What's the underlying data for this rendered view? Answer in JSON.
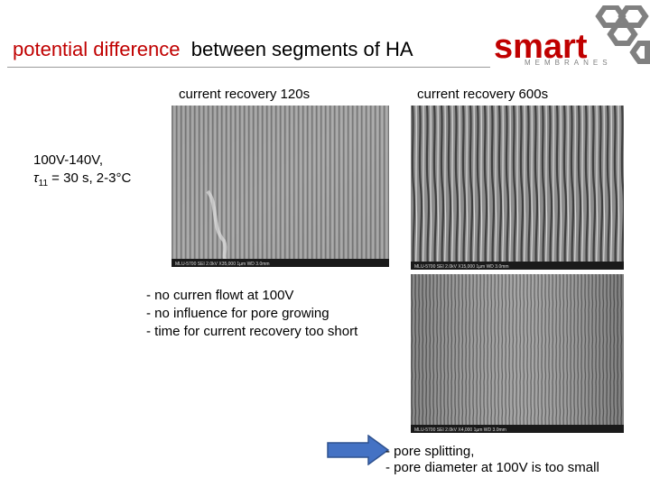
{
  "title": {
    "part1": "potential difference",
    "part2": "between segments of HA"
  },
  "logo": {
    "word": "smart",
    "subword": "MEMBRANES"
  },
  "labels": {
    "recovery_120": "current recovery 120s",
    "recovery_600": "current recovery  600s"
  },
  "conditions": {
    "line1": "100V-140V,",
    "line2_symbol": "τ",
    "line2_sub": "11",
    "line2_rest": " = 30 s, 2-3°C"
  },
  "notes": [
    "- no curren flowt at 100V",
    "- no influence for pore growing",
    "- time for current recovery  too short"
  ],
  "conclusions": [
    "- pore splitting,",
    "- pore diameter at 100V is too small"
  ],
  "sem_images": [
    {
      "name": "sem-120s",
      "scalebar": "MLU-5700   SEI   2.0kV   X35,000   1µm   WD 3.0mm"
    },
    {
      "name": "sem-600s-top",
      "scalebar": "MLU-5700   SEI   2.0kV   X15,000   1µm   WD 3.0mm"
    },
    {
      "name": "sem-600s-bottom",
      "scalebar": "MLU-5700   SEI   2.0kV   X4,000   1µm   WD 3.0mm"
    }
  ],
  "colors": {
    "title_red": "#c00000",
    "logo_red": "#c00000",
    "logo_gray": "#808080",
    "arrow_fill": "#4472c4",
    "arrow_stroke": "#2f528f"
  }
}
